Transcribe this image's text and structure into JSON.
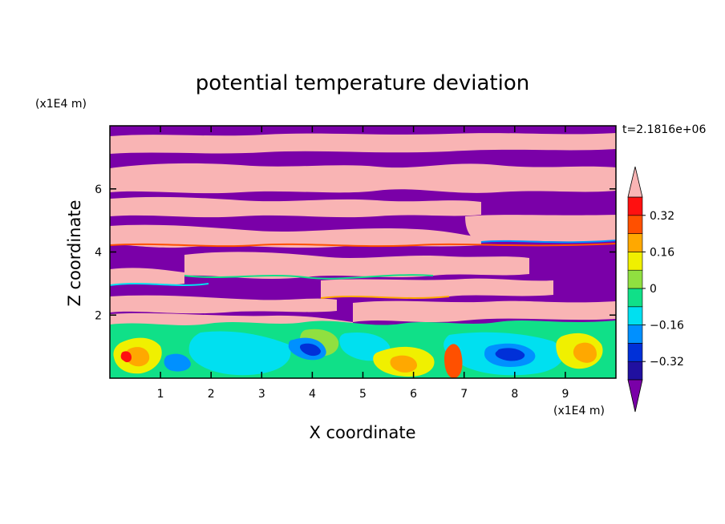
{
  "chart_data": {
    "type": "heatmap",
    "title": "potential temperature deviation",
    "xlabel": "X coordinate",
    "ylabel": "Z coordinate",
    "x_unit": "(x1E4 m)",
    "y_unit": "(x1E4 m)",
    "time_label": "t=2.1816e+06",
    "xlim": [
      0,
      10
    ],
    "ylim": [
      0,
      8
    ],
    "x_ticks": [
      "1",
      "2",
      "3",
      "4",
      "5",
      "6",
      "7",
      "8",
      "9"
    ],
    "y_ticks": [
      "2",
      "4",
      "6"
    ],
    "colorbar": {
      "levels": [
        -0.4,
        -0.32,
        -0.24,
        -0.16,
        -0.08,
        0,
        0.08,
        0.16,
        0.24,
        0.32,
        0.4
      ],
      "tick_labels": [
        "0.32",
        "0.16",
        "0",
        "−0.16",
        "−0.32"
      ],
      "tick_values": [
        0.32,
        0.16,
        0,
        -0.16,
        -0.32
      ],
      "colors_bottom_to_top": [
        "#7a00a8",
        "#2010a0",
        "#0030d8",
        "#0090ff",
        "#00e0f0",
        "#10e088",
        "#90e040",
        "#f0f000",
        "#ffa800",
        "#ff5000",
        "#ff1010",
        "#f9b4b4"
      ],
      "extend": "both"
    },
    "layers": [
      {
        "z_range": [
          7.0,
          8.0
        ],
        "top_class": "positive",
        "note": "banded stratified region"
      },
      {
        "z_range": [
          1.6,
          7.0
        ],
        "top_class": "alternating",
        "note": "alternating positive/negative layers"
      },
      {
        "z_range": [
          0.0,
          1.6
        ],
        "top_class": "near-zero",
        "note": "turbulent convective boundary layer with eddies"
      }
    ]
  }
}
